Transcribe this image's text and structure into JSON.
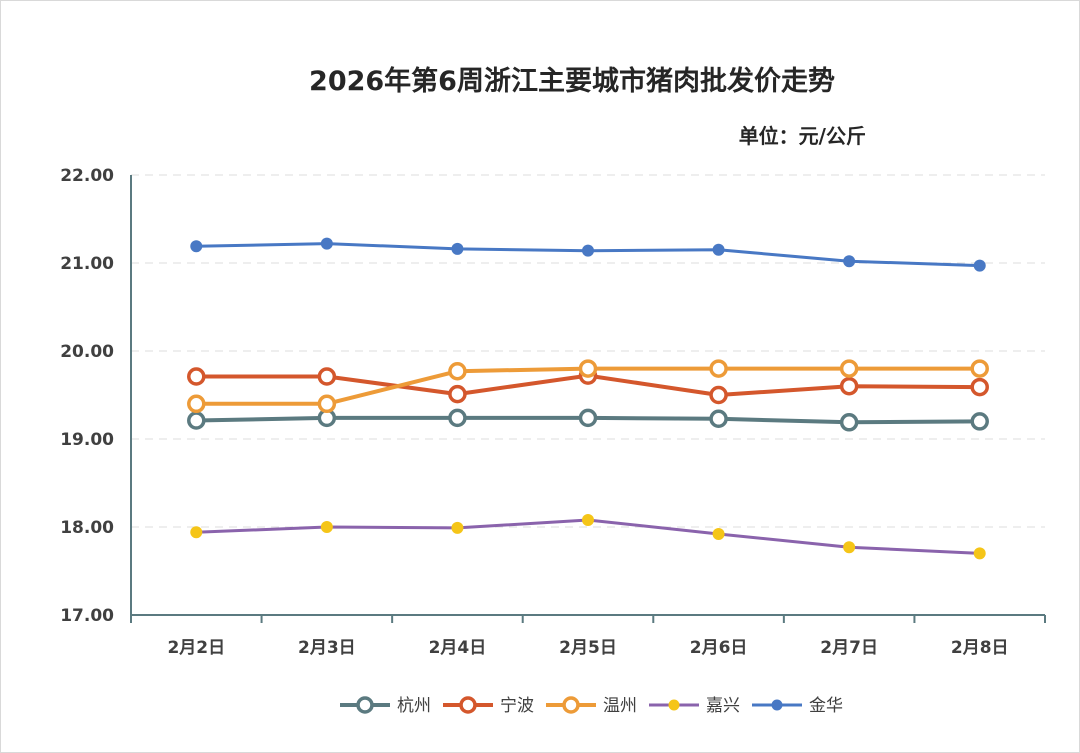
{
  "chart_data": {
    "type": "line",
    "title": "2026年第6周浙江主要城市猪肉批发价走势",
    "unit_label": "单位：元/公斤",
    "categories": [
      "2月2日",
      "2月3日",
      "2月4日",
      "2月5日",
      "2月6日",
      "2月7日",
      "2月8日"
    ],
    "ylim": [
      17,
      22
    ],
    "yticks": [
      "17.00",
      "18.00",
      "19.00",
      "20.00",
      "21.00",
      "22.00"
    ],
    "grid": true,
    "legend_position": "bottom",
    "series": [
      {
        "name": "杭州",
        "color": "#5b7a80",
        "marker": "hollow",
        "values": [
          19.21,
          19.24,
          19.24,
          19.24,
          19.23,
          19.19,
          19.2
        ]
      },
      {
        "name": "宁波",
        "color": "#d4572c",
        "marker": "hollow",
        "values": [
          19.71,
          19.71,
          19.51,
          19.72,
          19.5,
          19.6,
          19.59
        ]
      },
      {
        "name": "温州",
        "color": "#ed9b38",
        "marker": "hollow",
        "values": [
          19.4,
          19.4,
          19.77,
          19.8,
          19.8,
          19.8,
          19.8
        ]
      },
      {
        "name": "嘉兴",
        "color": "#8a63ac",
        "marker": "dot",
        "marker_color": "#f5c518",
        "values": [
          17.94,
          18.0,
          17.99,
          18.08,
          17.92,
          17.77,
          17.7
        ]
      },
      {
        "name": "金华",
        "color": "#4878c4",
        "marker": "dot",
        "marker_color": "#4878c4",
        "values": [
          21.19,
          21.22,
          21.16,
          21.14,
          21.15,
          21.02,
          20.97
        ]
      }
    ]
  }
}
